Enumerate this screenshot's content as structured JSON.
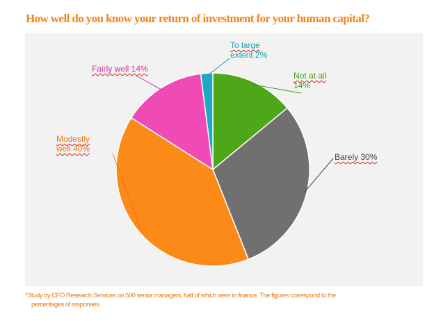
{
  "title": "How well do you know your return of investment for your human capital?",
  "chart_data": {
    "type": "pie",
    "slices": [
      {
        "label_lines": [
          "Not at all",
          "14%"
        ],
        "value": 14,
        "color": "#4ea619"
      },
      {
        "label_lines": [
          "Barely  30%"
        ],
        "value": 30,
        "color": "#707070"
      },
      {
        "label_lines": [
          "Modestly",
          "well 40%"
        ],
        "value": 40,
        "color": "#fb8a18"
      },
      {
        "label_lines": [
          "Fairly well 14%"
        ],
        "value": 14,
        "color": "#f04ab7"
      },
      {
        "label_lines": [
          "To large",
          "extent  2%"
        ],
        "value": 2,
        "color": "#1fa9c1"
      }
    ],
    "legend": "none"
  },
  "footnote": {
    "line1": "*Study by CFO Research Services on 500 senior managers, half of which were in finance. The figures correspond to the",
    "line2": "percentages of responses."
  }
}
